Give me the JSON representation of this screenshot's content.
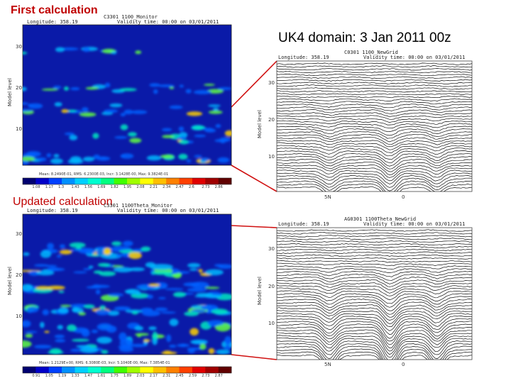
{
  "slide": {
    "title": "UK4 domain: 3 Jan 2011 00z",
    "label_first": "First calculation",
    "label_updated": "Updated calculation"
  },
  "panels": {
    "top_left": {
      "header_id": "C3301 1100_Monitor",
      "longitude": "Longitude: 358.19",
      "validity": "Validity time: 00:00 on 03/01/2011",
      "y_ticks": [
        "30",
        "20",
        "10"
      ],
      "y_label": "Model level",
      "stats": "Mean: 8.2490E-01,  RMS: 6.2300E-03,  Incr: 3.1428E-00,  Max: 9.3824E-01",
      "colorbar_ticks": [
        "1.08",
        "1.17",
        "1.3",
        "1.43",
        "1.56",
        "1.69",
        "1.82",
        "1.95",
        "2.08",
        "2.21",
        "2.34",
        "2.47",
        "2.6",
        "2.73",
        "2.86"
      ]
    },
    "bottom_left": {
      "header_id": "C3301 1100Theta_Monitor",
      "longitude": "Longitude: 358.19",
      "validity": "Validity time: 00:00 on 03/01/2011",
      "y_ticks": [
        "30",
        "20",
        "10"
      ],
      "y_label": "Model level",
      "stats": "Mean: 1.2129E+00,  RMS: 6.3080E-03,  Incr: 5.1040E-00,  Max: 7.3854E-01",
      "colorbar_ticks": [
        "0.91",
        "1.05",
        "1.19",
        "1.33",
        "1.47",
        "1.61",
        "1.75",
        "1.89",
        "2.03",
        "2.17",
        "2.31",
        "2.45",
        "2.59",
        "2.73",
        "2.87"
      ]
    },
    "top_right": {
      "header_id": "C0301 1100_NewGrid",
      "longitude": "Longitude: 358.19",
      "validity": "Validity time: 00:00 on 03/01/2011",
      "y_ticks": [
        "30",
        "20",
        "10"
      ],
      "y_label": "Model level",
      "x_ticks": [
        "5N",
        "0"
      ]
    },
    "bottom_right": {
      "header_id": "AG0301 1100Theta_NewGrid",
      "longitude": "Longitude: 358.19",
      "validity": "Validity time: 00:00 on 03/01/2011",
      "y_ticks": [
        "30",
        "20",
        "10"
      ],
      "y_label": "Model level",
      "x_ticks": [
        "5N",
        "0"
      ]
    }
  },
  "colors": {
    "plot_bg": "#0a1aa8",
    "accent_label": "#c00000",
    "connector": "#d01010",
    "colorbar": [
      "#000070",
      "#0000c8",
      "#0040ff",
      "#0090ff",
      "#00d0ff",
      "#00ffd0",
      "#00ff80",
      "#40ff00",
      "#a0ff00",
      "#ffff00",
      "#ffc000",
      "#ff8000",
      "#ff4000",
      "#e00000",
      "#a00000",
      "#600000"
    ]
  }
}
